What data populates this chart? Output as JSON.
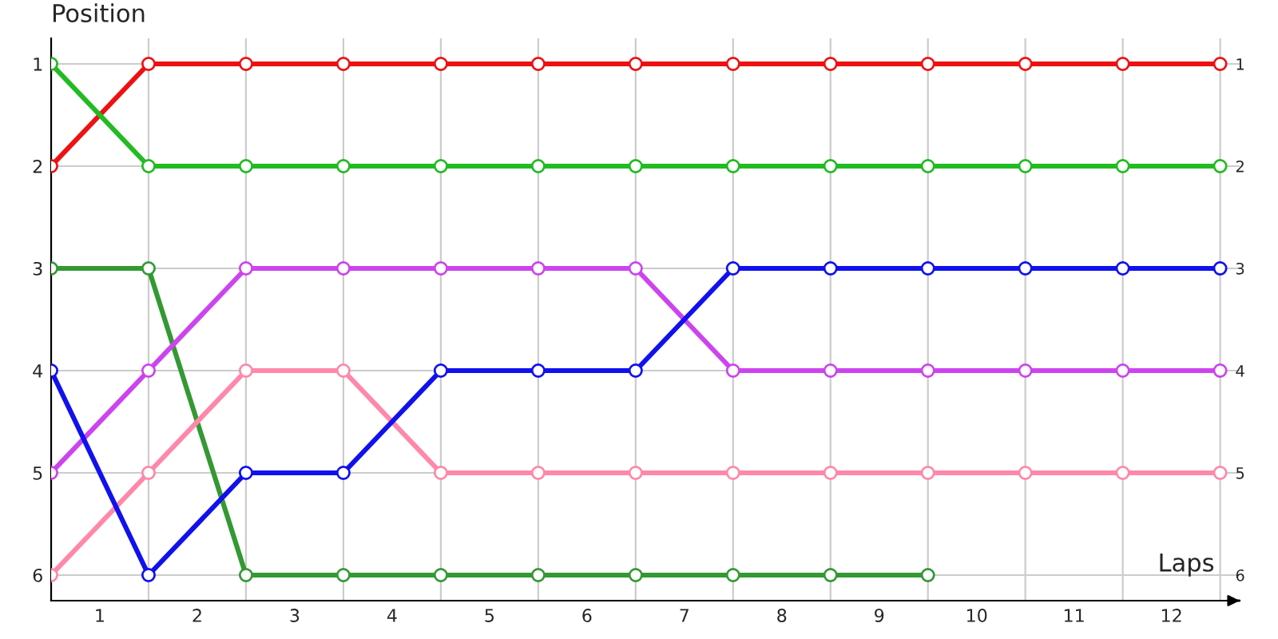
{
  "chart_data": {
    "type": "line",
    "xlabel": "Laps",
    "ylabel": "Position",
    "x": [
      0,
      1,
      2,
      3,
      4,
      5,
      6,
      7,
      8,
      9,
      10,
      11,
      12
    ],
    "xlim": [
      0,
      12.2
    ],
    "ylim": [
      6.25,
      0.75
    ],
    "y2lim": [
      6.25,
      0.75
    ],
    "xticks": [
      {
        "value": 0,
        "label": null
      },
      {
        "value": 0.5,
        "label": "1"
      },
      {
        "value": 1,
        "label": null
      },
      {
        "value": 1.5,
        "label": "2"
      },
      {
        "value": 2,
        "label": null
      },
      {
        "value": 2.5,
        "label": "3"
      },
      {
        "value": 3,
        "label": null
      },
      {
        "value": 3.5,
        "label": "4"
      },
      {
        "value": 4,
        "label": null
      },
      {
        "value": 4.5,
        "label": "5"
      },
      {
        "value": 5,
        "label": null
      },
      {
        "value": 5.5,
        "label": "6"
      },
      {
        "value": 6,
        "label": null
      },
      {
        "value": 6.5,
        "label": "7"
      },
      {
        "value": 7,
        "label": null
      },
      {
        "value": 7.5,
        "label": "8"
      },
      {
        "value": 8,
        "label": null
      },
      {
        "value": 8.5,
        "label": "9"
      },
      {
        "value": 9,
        "label": null
      },
      {
        "value": 9.5,
        "label": "10"
      },
      {
        "value": 10,
        "label": null
      },
      {
        "value": 10.5,
        "label": "11"
      },
      {
        "value": 11,
        "label": null
      },
      {
        "value": 11.5,
        "label": "12"
      },
      {
        "value": 12,
        "label": null
      }
    ],
    "yticks": [
      1,
      2,
      3,
      4,
      5,
      6
    ],
    "y2ticks": [
      1,
      2,
      3,
      4,
      5,
      6
    ],
    "grid": true,
    "marker": "circle",
    "line_style": "solid",
    "series": [
      {
        "color": "#ee1111",
        "values": [
          2,
          1,
          1,
          1,
          1,
          1,
          1,
          1,
          1,
          1,
          1,
          1,
          1
        ]
      },
      {
        "color": "#22bb22",
        "values": [
          1,
          2,
          2,
          2,
          2,
          2,
          2,
          2,
          2,
          2,
          2,
          2,
          2
        ]
      },
      {
        "color": "#339933",
        "values": [
          3,
          3,
          6,
          6,
          6,
          6,
          6,
          6,
          6,
          6,
          null,
          null,
          null
        ]
      },
      {
        "color": "#cc44ee",
        "values": [
          5,
          4,
          3,
          3,
          3,
          3,
          3,
          4,
          4,
          4,
          4,
          4,
          4
        ]
      },
      {
        "color": "#ff88aa",
        "values": [
          6,
          5,
          4,
          4,
          5,
          5,
          5,
          5,
          5,
          5,
          5,
          5,
          5
        ]
      },
      {
        "color": "#1111ee",
        "values": [
          4,
          6,
          5,
          5,
          4,
          4,
          4,
          3,
          3,
          3,
          3,
          3,
          3
        ]
      }
    ]
  }
}
